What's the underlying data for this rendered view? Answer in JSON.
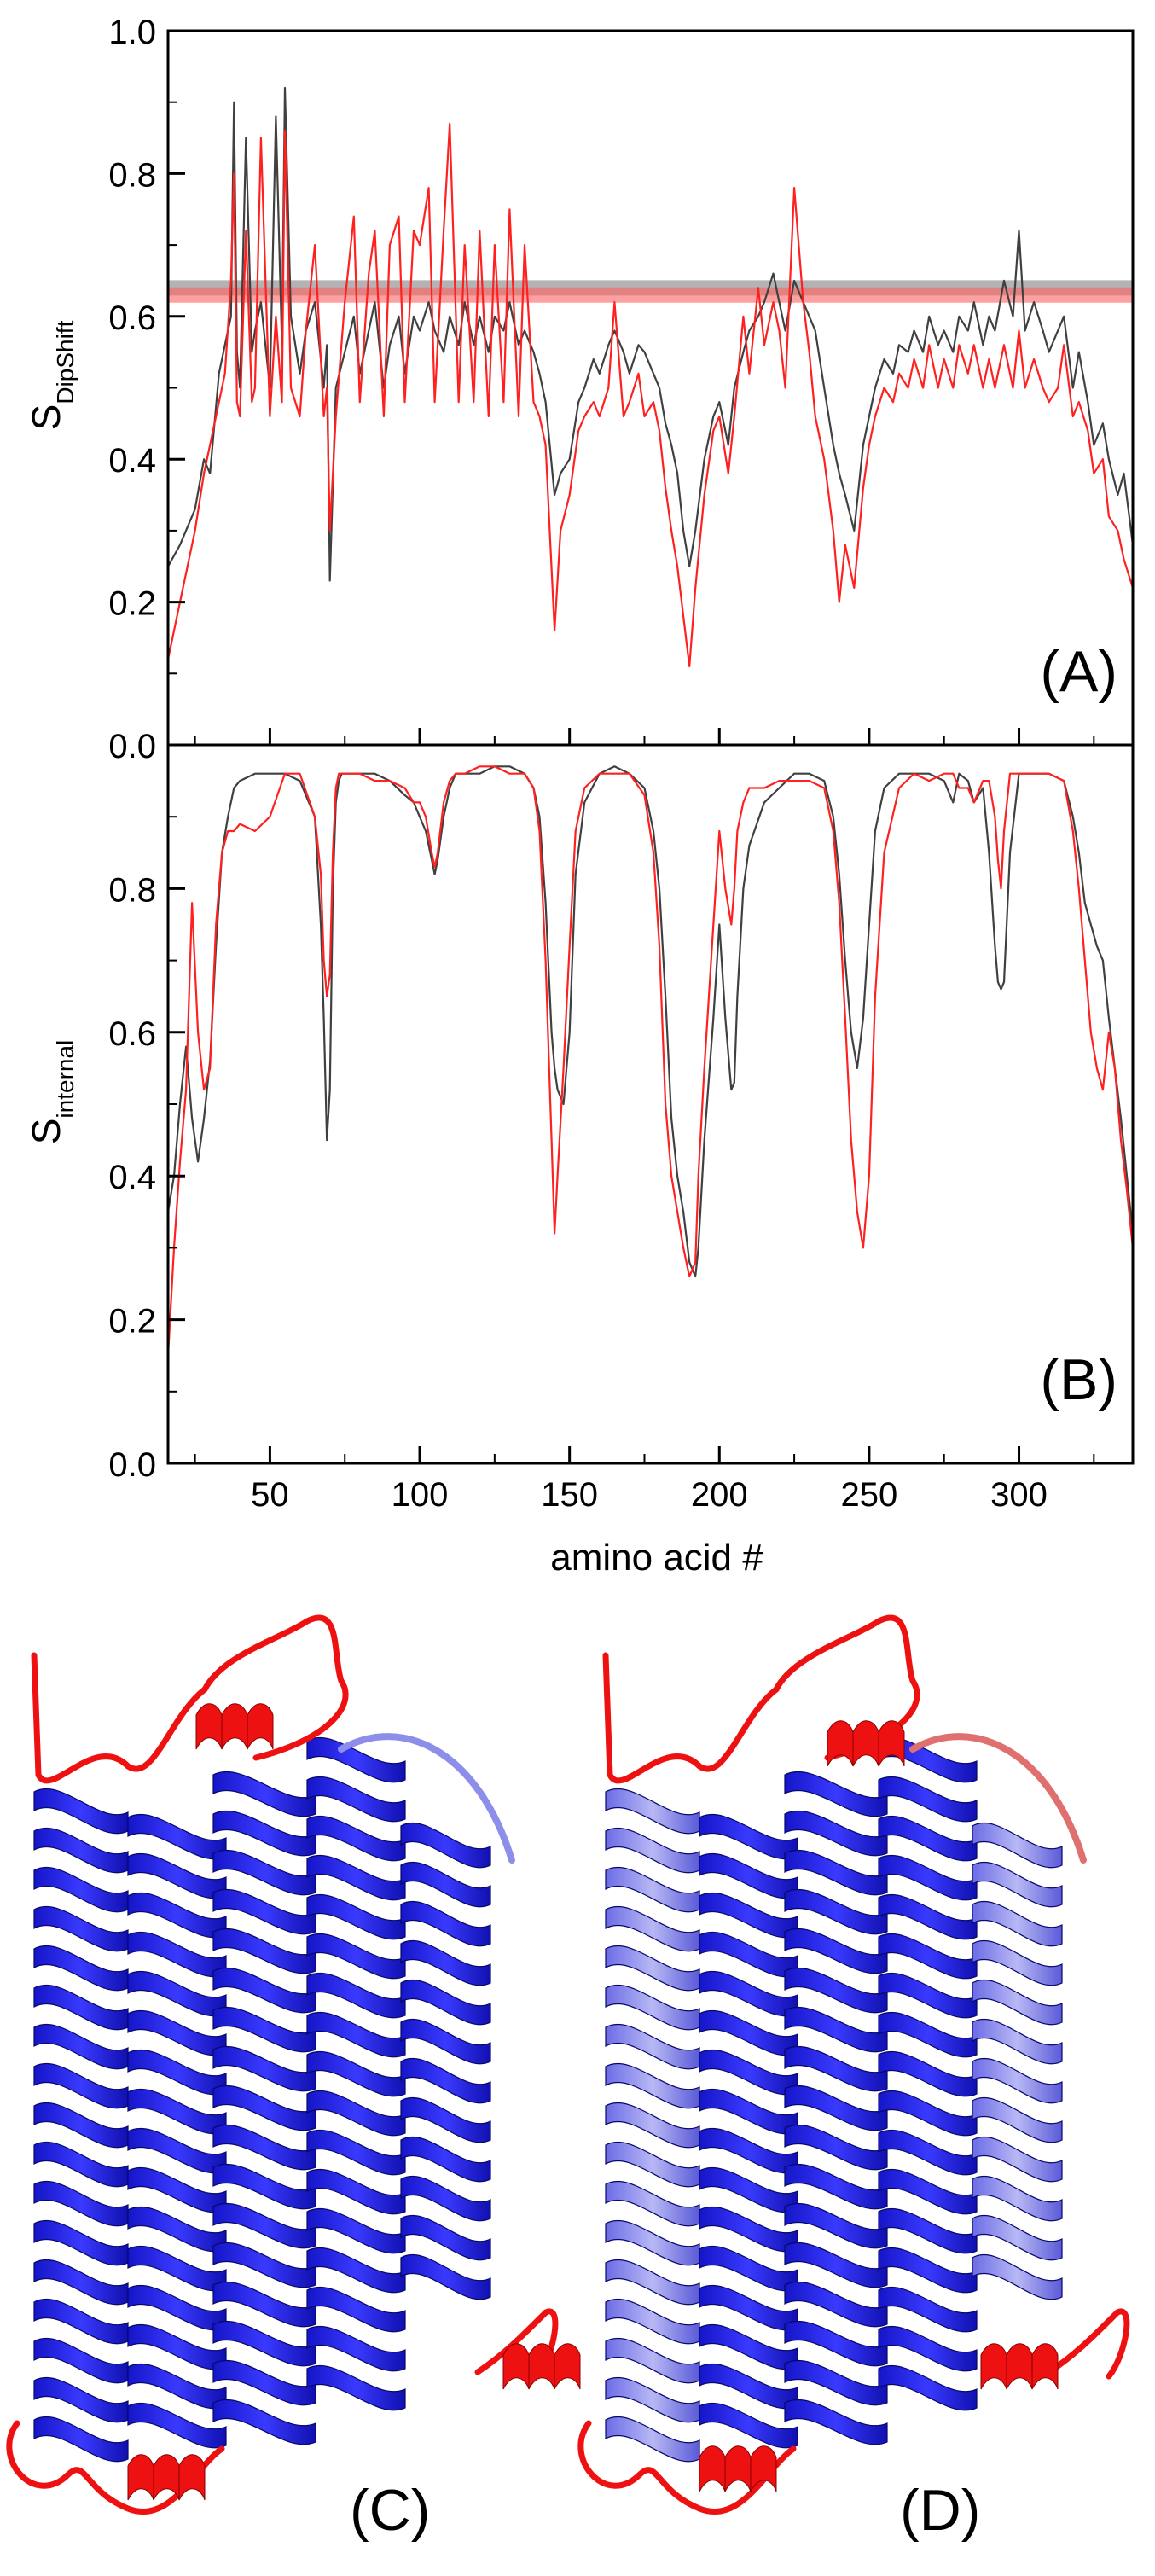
{
  "chart_data": [
    {
      "type": "line",
      "panel_label": "(A)",
      "ylabel_main": "S",
      "ylabel_sub": "DipShift",
      "xlim": [
        16,
        338
      ],
      "ylim": [
        0.0,
        1.0
      ],
      "xticks": [
        50,
        100,
        150,
        200,
        250,
        300
      ],
      "yticks": [
        0.0,
        0.2,
        0.4,
        0.6,
        0.8,
        1.0
      ],
      "ytick_labels": [
        "0.0",
        "0.2",
        "0.4",
        "0.6",
        "0.8",
        "1.0"
      ],
      "reference_lines": [
        {
          "color": "#808080",
          "y": 0.64
        },
        {
          "color": "#ff6060",
          "y": 0.63
        }
      ],
      "series": [
        {
          "color": "#404040",
          "x": [
            16,
            20,
            25,
            28,
            30,
            33,
            35,
            37,
            38,
            39,
            40,
            42,
            44,
            45,
            47,
            50,
            52,
            54,
            55,
            57,
            60,
            62,
            65,
            68,
            69,
            70,
            72,
            75,
            78,
            80,
            83,
            85,
            88,
            90,
            93,
            95,
            98,
            100,
            103,
            105,
            108,
            110,
            113,
            115,
            118,
            120,
            123,
            125,
            128,
            130,
            133,
            135,
            138,
            140,
            142,
            145,
            147,
            150,
            153,
            155,
            158,
            160,
            163,
            165,
            168,
            170,
            173,
            175,
            178,
            180,
            182,
            184,
            186,
            188,
            190,
            192,
            195,
            198,
            200,
            203,
            205,
            208,
            210,
            213,
            215,
            218,
            220,
            222,
            225,
            228,
            230,
            232,
            235,
            238,
            240,
            242,
            245,
            248,
            250,
            252,
            255,
            258,
            260,
            263,
            265,
            268,
            270,
            273,
            275,
            278,
            280,
            283,
            285,
            288,
            290,
            292,
            295,
            298,
            300,
            302,
            305,
            308,
            310,
            313,
            315,
            318,
            320,
            323,
            325,
            328,
            330,
            333,
            335,
            338
          ],
          "y": [
            0.25,
            0.28,
            0.33,
            0.4,
            0.38,
            0.52,
            0.56,
            0.6,
            0.9,
            0.55,
            0.5,
            0.85,
            0.55,
            0.58,
            0.62,
            0.5,
            0.88,
            0.56,
            0.92,
            0.6,
            0.52,
            0.58,
            0.62,
            0.5,
            0.56,
            0.23,
            0.5,
            0.55,
            0.6,
            0.52,
            0.58,
            0.62,
            0.5,
            0.56,
            0.6,
            0.52,
            0.6,
            0.58,
            0.62,
            0.58,
            0.55,
            0.6,
            0.56,
            0.62,
            0.56,
            0.6,
            0.55,
            0.6,
            0.58,
            0.62,
            0.56,
            0.58,
            0.55,
            0.52,
            0.48,
            0.35,
            0.38,
            0.4,
            0.48,
            0.5,
            0.54,
            0.52,
            0.56,
            0.58,
            0.55,
            0.52,
            0.56,
            0.55,
            0.52,
            0.5,
            0.45,
            0.42,
            0.38,
            0.3,
            0.25,
            0.3,
            0.4,
            0.46,
            0.48,
            0.42,
            0.5,
            0.55,
            0.58,
            0.6,
            0.62,
            0.66,
            0.62,
            0.58,
            0.65,
            0.62,
            0.6,
            0.58,
            0.5,
            0.42,
            0.38,
            0.35,
            0.3,
            0.42,
            0.46,
            0.5,
            0.54,
            0.52,
            0.56,
            0.55,
            0.58,
            0.55,
            0.6,
            0.56,
            0.58,
            0.55,
            0.6,
            0.58,
            0.62,
            0.56,
            0.6,
            0.58,
            0.65,
            0.6,
            0.72,
            0.58,
            0.62,
            0.58,
            0.55,
            0.58,
            0.6,
            0.5,
            0.55,
            0.48,
            0.42,
            0.45,
            0.4,
            0.35,
            0.38,
            0.28
          ]
        },
        {
          "color": "#ff2020",
          "x": [
            16,
            20,
            25,
            28,
            30,
            33,
            35,
            37,
            38,
            39,
            40,
            42,
            44,
            45,
            47,
            50,
            52,
            54,
            55,
            57,
            60,
            62,
            65,
            68,
            69,
            70,
            72,
            75,
            78,
            80,
            83,
            85,
            88,
            90,
            93,
            95,
            98,
            100,
            103,
            105,
            108,
            110,
            113,
            115,
            118,
            120,
            123,
            125,
            128,
            130,
            133,
            135,
            138,
            140,
            142,
            145,
            147,
            150,
            153,
            155,
            158,
            160,
            163,
            165,
            168,
            170,
            173,
            175,
            178,
            180,
            182,
            184,
            186,
            188,
            190,
            192,
            195,
            198,
            200,
            203,
            205,
            208,
            210,
            213,
            215,
            218,
            220,
            222,
            225,
            228,
            230,
            232,
            235,
            238,
            240,
            242,
            245,
            248,
            250,
            252,
            255,
            258,
            260,
            263,
            265,
            268,
            270,
            273,
            275,
            278,
            280,
            283,
            285,
            288,
            290,
            292,
            295,
            298,
            300,
            302,
            305,
            308,
            310,
            313,
            315,
            318,
            320,
            323,
            325,
            328,
            330,
            333,
            335,
            338
          ],
          "y": [
            0.12,
            0.2,
            0.3,
            0.38,
            0.42,
            0.48,
            0.52,
            0.65,
            0.8,
            0.48,
            0.46,
            0.72,
            0.48,
            0.5,
            0.85,
            0.46,
            0.6,
            0.48,
            0.86,
            0.5,
            0.46,
            0.58,
            0.7,
            0.46,
            0.5,
            0.3,
            0.46,
            0.62,
            0.74,
            0.48,
            0.66,
            0.72,
            0.46,
            0.7,
            0.74,
            0.48,
            0.72,
            0.7,
            0.78,
            0.48,
            0.72,
            0.87,
            0.48,
            0.7,
            0.48,
            0.72,
            0.46,
            0.7,
            0.48,
            0.75,
            0.46,
            0.7,
            0.48,
            0.46,
            0.42,
            0.16,
            0.3,
            0.35,
            0.44,
            0.46,
            0.48,
            0.46,
            0.5,
            0.62,
            0.46,
            0.48,
            0.52,
            0.46,
            0.48,
            0.44,
            0.36,
            0.3,
            0.25,
            0.18,
            0.11,
            0.22,
            0.35,
            0.44,
            0.46,
            0.38,
            0.46,
            0.6,
            0.52,
            0.64,
            0.56,
            0.62,
            0.58,
            0.5,
            0.78,
            0.62,
            0.55,
            0.46,
            0.4,
            0.3,
            0.2,
            0.28,
            0.22,
            0.36,
            0.42,
            0.46,
            0.5,
            0.48,
            0.52,
            0.5,
            0.54,
            0.5,
            0.56,
            0.5,
            0.54,
            0.5,
            0.56,
            0.52,
            0.56,
            0.5,
            0.54,
            0.5,
            0.56,
            0.5,
            0.58,
            0.5,
            0.54,
            0.5,
            0.48,
            0.5,
            0.56,
            0.46,
            0.48,
            0.44,
            0.38,
            0.4,
            0.32,
            0.3,
            0.26,
            0.22
          ]
        }
      ]
    },
    {
      "type": "line",
      "panel_label": "(B)",
      "ylabel_main": "S",
      "ylabel_sub": "internal",
      "xlabel": "amino acid #",
      "xlim": [
        16,
        338
      ],
      "ylim": [
        0.0,
        1.0
      ],
      "xticks": [
        50,
        100,
        150,
        200,
        250,
        300
      ],
      "xtick_labels": [
        "50",
        "100",
        "150",
        "200",
        "250",
        "300"
      ],
      "yticks": [
        0.0,
        0.2,
        0.4,
        0.6,
        0.8
      ],
      "ytick_labels": [
        "0.0",
        "0.2",
        "0.4",
        "0.6",
        "0.8"
      ],
      "series": [
        {
          "color": "#404040",
          "x": [
            16,
            18,
            20,
            22,
            24,
            26,
            28,
            30,
            32,
            34,
            36,
            38,
            40,
            45,
            50,
            55,
            60,
            65,
            67,
            68,
            69,
            70,
            71,
            72,
            73,
            74,
            76,
            80,
            85,
            90,
            95,
            98,
            100,
            102,
            104,
            105,
            106,
            108,
            110,
            112,
            115,
            120,
            125,
            130,
            135,
            138,
            140,
            142,
            144,
            145,
            146,
            148,
            150,
            152,
            155,
            160,
            165,
            170,
            175,
            178,
            180,
            182,
            184,
            186,
            188,
            190,
            192,
            193,
            195,
            198,
            200,
            202,
            204,
            205,
            206,
            208,
            210,
            215,
            220,
            225,
            230,
            235,
            238,
            240,
            242,
            244,
            246,
            248,
            250,
            252,
            255,
            260,
            265,
            270,
            275,
            278,
            280,
            283,
            285,
            288,
            290,
            292,
            293,
            294,
            295,
            297,
            300,
            305,
            310,
            315,
            318,
            320,
            322,
            324,
            326,
            328,
            330,
            332,
            334,
            336,
            338
          ],
          "y": [
            0.35,
            0.4,
            0.5,
            0.58,
            0.48,
            0.42,
            0.48,
            0.56,
            0.72,
            0.85,
            0.9,
            0.94,
            0.95,
            0.96,
            0.96,
            0.96,
            0.95,
            0.9,
            0.75,
            0.62,
            0.45,
            0.52,
            0.8,
            0.92,
            0.95,
            0.96,
            0.96,
            0.96,
            0.96,
            0.95,
            0.93,
            0.92,
            0.9,
            0.88,
            0.84,
            0.82,
            0.84,
            0.9,
            0.94,
            0.96,
            0.96,
            0.96,
            0.97,
            0.97,
            0.96,
            0.94,
            0.9,
            0.78,
            0.6,
            0.55,
            0.52,
            0.5,
            0.6,
            0.82,
            0.92,
            0.96,
            0.97,
            0.96,
            0.94,
            0.88,
            0.8,
            0.65,
            0.48,
            0.4,
            0.35,
            0.28,
            0.26,
            0.3,
            0.45,
            0.62,
            0.75,
            0.62,
            0.52,
            0.53,
            0.65,
            0.8,
            0.86,
            0.92,
            0.94,
            0.96,
            0.96,
            0.95,
            0.9,
            0.82,
            0.7,
            0.6,
            0.55,
            0.62,
            0.75,
            0.88,
            0.94,
            0.96,
            0.96,
            0.96,
            0.95,
            0.92,
            0.96,
            0.95,
            0.92,
            0.94,
            0.85,
            0.72,
            0.67,
            0.66,
            0.67,
            0.85,
            0.96,
            0.96,
            0.96,
            0.95,
            0.9,
            0.85,
            0.78,
            0.75,
            0.72,
            0.7,
            0.62,
            0.55,
            0.48,
            0.4,
            0.32
          ]
        },
        {
          "color": "#ff2020",
          "x": [
            16,
            18,
            20,
            22,
            24,
            26,
            28,
            30,
            32,
            34,
            36,
            38,
            40,
            45,
            50,
            55,
            60,
            65,
            67,
            68,
            69,
            70,
            71,
            72,
            73,
            74,
            76,
            80,
            85,
            90,
            95,
            98,
            100,
            102,
            104,
            105,
            106,
            108,
            110,
            112,
            115,
            120,
            125,
            130,
            135,
            138,
            140,
            142,
            144,
            145,
            146,
            148,
            150,
            152,
            155,
            160,
            165,
            170,
            175,
            178,
            180,
            182,
            184,
            186,
            188,
            190,
            192,
            193,
            195,
            198,
            200,
            202,
            204,
            205,
            206,
            208,
            210,
            215,
            220,
            225,
            230,
            235,
            238,
            240,
            242,
            244,
            246,
            248,
            250,
            252,
            255,
            260,
            265,
            270,
            275,
            278,
            280,
            283,
            285,
            288,
            290,
            292,
            293,
            294,
            295,
            297,
            300,
            305,
            310,
            315,
            318,
            320,
            322,
            324,
            326,
            328,
            330,
            332,
            334,
            336,
            338
          ],
          "y": [
            0.15,
            0.3,
            0.42,
            0.52,
            0.78,
            0.6,
            0.52,
            0.55,
            0.75,
            0.85,
            0.88,
            0.88,
            0.89,
            0.88,
            0.9,
            0.96,
            0.96,
            0.9,
            0.82,
            0.7,
            0.65,
            0.68,
            0.85,
            0.94,
            0.96,
            0.96,
            0.96,
            0.96,
            0.95,
            0.95,
            0.94,
            0.92,
            0.92,
            0.9,
            0.85,
            0.83,
            0.85,
            0.92,
            0.95,
            0.96,
            0.96,
            0.97,
            0.97,
            0.96,
            0.96,
            0.94,
            0.88,
            0.7,
            0.45,
            0.32,
            0.4,
            0.55,
            0.72,
            0.88,
            0.94,
            0.96,
            0.96,
            0.96,
            0.93,
            0.85,
            0.72,
            0.5,
            0.4,
            0.35,
            0.3,
            0.26,
            0.28,
            0.4,
            0.55,
            0.75,
            0.88,
            0.8,
            0.75,
            0.8,
            0.88,
            0.92,
            0.94,
            0.94,
            0.95,
            0.95,
            0.95,
            0.94,
            0.88,
            0.78,
            0.62,
            0.45,
            0.35,
            0.3,
            0.4,
            0.65,
            0.85,
            0.94,
            0.96,
            0.95,
            0.96,
            0.96,
            0.94,
            0.94,
            0.92,
            0.95,
            0.95,
            0.9,
            0.84,
            0.8,
            0.88,
            0.96,
            0.96,
            0.96,
            0.96,
            0.95,
            0.88,
            0.8,
            0.7,
            0.6,
            0.55,
            0.52,
            0.6,
            0.55,
            0.45,
            0.38,
            0.3
          ]
        }
      ]
    }
  ],
  "structure_panels": [
    {
      "label": "(C)"
    },
    {
      "label": "(D)"
    }
  ]
}
